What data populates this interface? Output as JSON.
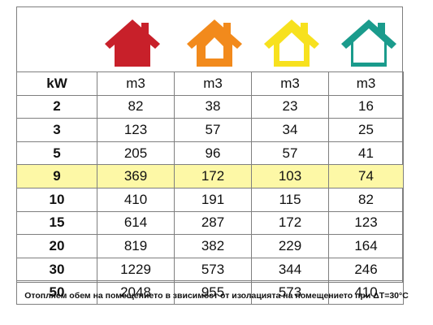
{
  "houses": [
    {
      "icon": "house-icon",
      "color": "#c8202a"
    },
    {
      "icon": "house-icon",
      "color": "#f28a1c"
    },
    {
      "icon": "house-icon",
      "color": "#f7e11e"
    },
    {
      "icon": "house-icon",
      "color": "#1a9b8c"
    }
  ],
  "table": {
    "headers": [
      "kW",
      "m3",
      "m3",
      "m3",
      "m3"
    ],
    "highlight_color": "#fdf8a6",
    "rows": [
      {
        "kw": "2",
        "values": [
          "82",
          "38",
          "23",
          "16"
        ]
      },
      {
        "kw": "3",
        "values": [
          "123",
          "57",
          "34",
          "25"
        ]
      },
      {
        "kw": "5",
        "values": [
          "205",
          "96",
          "57",
          "41"
        ]
      },
      {
        "kw": "9",
        "values": [
          "369",
          "172",
          "103",
          "74"
        ]
      },
      {
        "kw": "10",
        "values": [
          "410",
          "191",
          "115",
          "82"
        ]
      },
      {
        "kw": "15",
        "values": [
          "614",
          "287",
          "172",
          "123"
        ]
      },
      {
        "kw": "20",
        "values": [
          "819",
          "382",
          "229",
          "164"
        ]
      },
      {
        "kw": "30",
        "values": [
          "1229",
          "573",
          "344",
          "246"
        ]
      },
      {
        "kw": "50",
        "values": [
          "2048",
          "955",
          "573",
          "410"
        ]
      }
    ]
  },
  "caption": "Отопляем обем на помещението в звисимост от изолацията на помещението при ΔT=30°C"
}
